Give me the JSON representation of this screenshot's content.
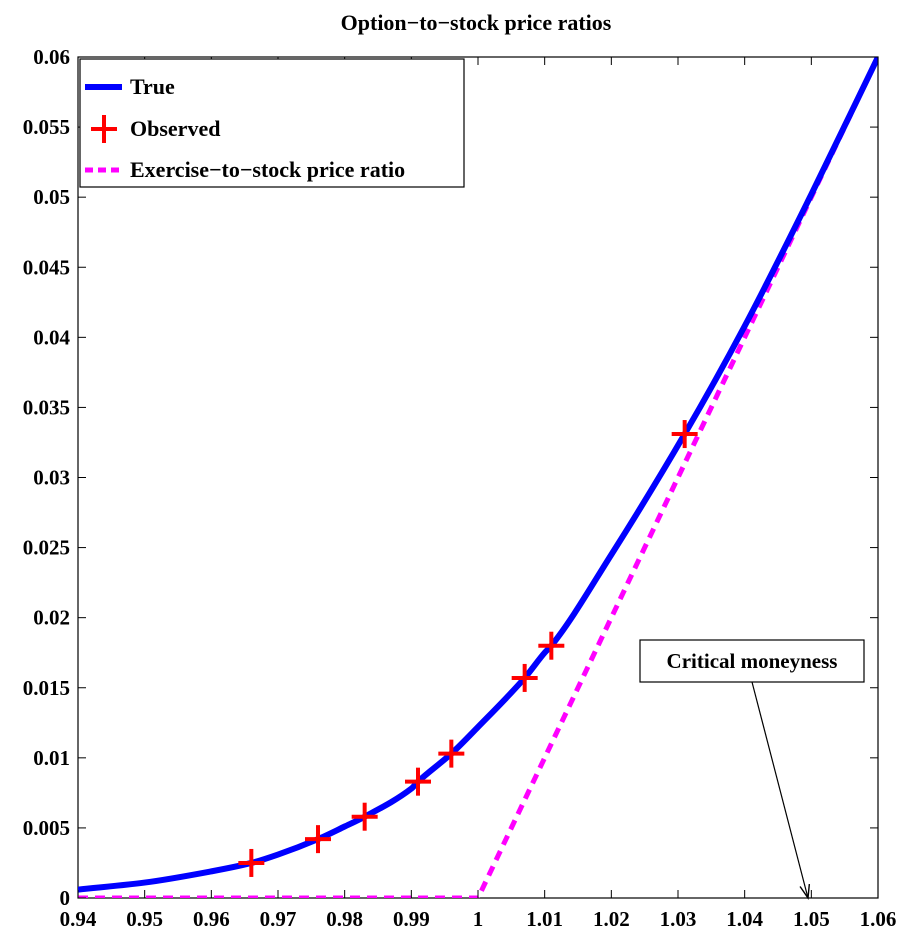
{
  "chart_data": {
    "type": "line",
    "title": "Option−to−stock price ratios",
    "xlabel": "",
    "ylabel": "",
    "xlim": [
      0.94,
      1.06
    ],
    "ylim": [
      0,
      0.06
    ],
    "x_ticks": [
      "0.94",
      "0.95",
      "0.96",
      "0.97",
      "0.98",
      "0.99",
      "1",
      "1.01",
      "1.02",
      "1.03",
      "1.04",
      "1.05",
      "1.06"
    ],
    "y_ticks": [
      "0",
      "0.005",
      "0.01",
      "0.015",
      "0.02",
      "0.025",
      "0.03",
      "0.035",
      "0.04",
      "0.045",
      "0.05",
      "0.055",
      "0.06"
    ],
    "grid": false,
    "legend_position": "top-left",
    "series": [
      {
        "name": "True",
        "style": "solid-line",
        "color": "#0000ff",
        "x": [
          0.94,
          0.95,
          0.96,
          0.966,
          0.97,
          0.976,
          0.98,
          0.983,
          0.99,
          0.991,
          0.996,
          1.0,
          1.007,
          1.01,
          1.011,
          1.02,
          1.031,
          1.04,
          1.05,
          1.06
        ],
        "y": [
          0.0006,
          0.0011,
          0.0019,
          0.0025,
          0.0031,
          0.0042,
          0.0051,
          0.0058,
          0.0078,
          0.0083,
          0.0103,
          0.0122,
          0.0157,
          0.0175,
          0.018,
          0.0245,
          0.0331,
          0.0408,
          0.0502,
          0.06
        ]
      },
      {
        "name": "Observed",
        "style": "plus-markers",
        "color": "#ff0000",
        "x": [
          0.966,
          0.976,
          0.983,
          0.991,
          0.996,
          1.007,
          1.011,
          1.031
        ],
        "y": [
          0.0025,
          0.0042,
          0.0058,
          0.0083,
          0.0103,
          0.0157,
          0.018,
          0.0331
        ]
      },
      {
        "name": "Exercise−to−stock price ratio",
        "style": "dashed-line",
        "color": "#ff00ff",
        "x": [
          0.94,
          1.0,
          1.06
        ],
        "y": [
          0,
          0,
          0.06
        ]
      }
    ],
    "annotations": [
      {
        "text": "Critical moneyness",
        "arrow_to": [
          1.0495,
          0
        ]
      }
    ]
  }
}
